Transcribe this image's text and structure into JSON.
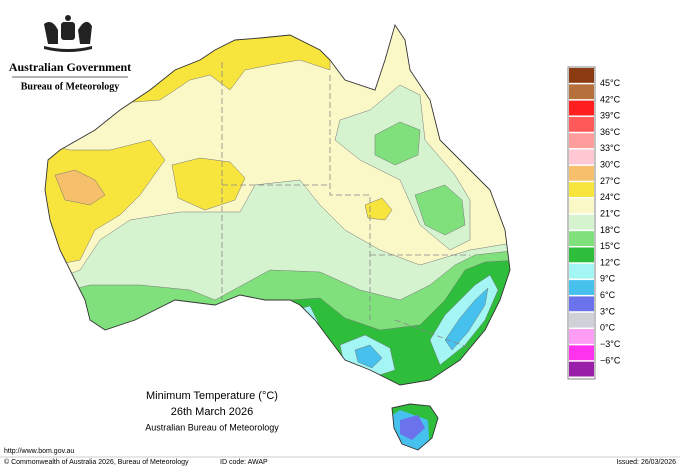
{
  "header": {
    "government": "Australian Government",
    "agency": "Bureau of Meteorology"
  },
  "legend": {
    "colors": [
      "#8a3b12",
      "#b5703c",
      "#ff1f1f",
      "#ff5a5a",
      "#ff9c9c",
      "#ffc8d2",
      "#f6bf6b",
      "#f7e43d",
      "#fbf8c8",
      "#d5f3cf",
      "#7fe07c",
      "#2fbe3c",
      "#a3f6f4",
      "#46c1ee",
      "#6a73ec",
      "#cfd0d8",
      "#ff9cf5",
      "#ff33ee",
      "#9a1fa8"
    ],
    "labels": [
      "45°C",
      "42°C",
      "39°C",
      "36°C",
      "33°C",
      "30°C",
      "27°C",
      "24°C",
      "21°C",
      "18°C",
      "15°C",
      "12°C",
      "9°C",
      "6°C",
      "3°C",
      "0°C",
      "−3°C",
      "−6°C"
    ]
  },
  "caption": {
    "title": "Minimum Temperature (°C)",
    "date": "26th March 2026",
    "source": "Australian Bureau of Meteorology"
  },
  "footer": {
    "url": "http://www.bom.gov.au",
    "copyright": "© Commonwealth of Australia 2026, Bureau of Meteorology",
    "id_code": "ID code: AWAP",
    "issued": "Issued: 26/03/2026"
  }
}
